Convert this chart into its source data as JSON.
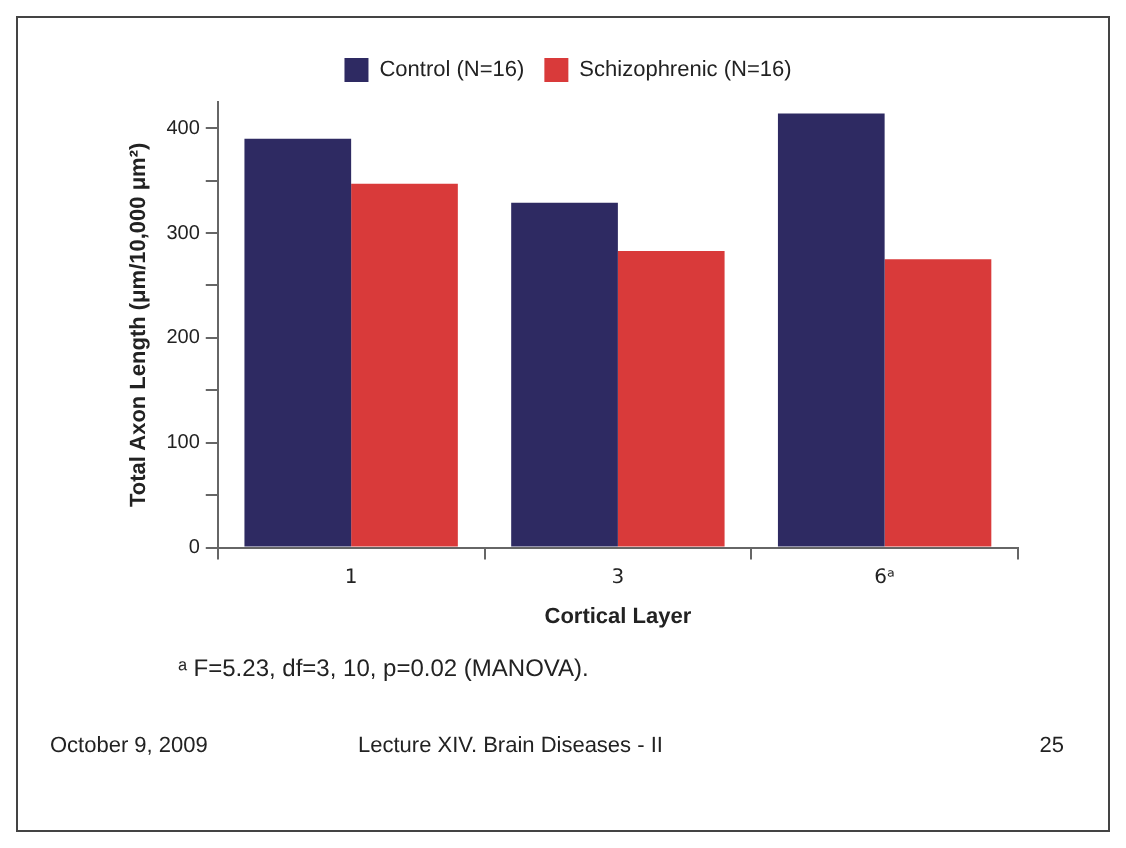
{
  "chart_data": {
    "type": "bar",
    "xlabel": "Cortical Layer",
    "ylabel": "Total Axon Length (μm/10,000 μm²)",
    "categories": [
      "1",
      "3",
      "6ᵃ"
    ],
    "series": [
      {
        "name": "Control (N=16)",
        "color": "#2e2a62",
        "values": [
          390,
          329,
          414
        ]
      },
      {
        "name": "Schizophrenic (N=16)",
        "color": "#d93a3a",
        "values": [
          347,
          283,
          275
        ]
      }
    ],
    "ylim": [
      0,
      425
    ],
    "yticks": [
      0,
      {
        "value": 50,
        "label": null
      },
      100,
      {
        "value": 150,
        "label": null
      },
      200,
      {
        "value": 250,
        "label": null
      },
      300,
      {
        "value": 350,
        "label": null
      },
      400
    ],
    "grid": false,
    "legend": "top",
    "annotations": [
      "ᵃ F=5.23, df=3, 10, p=0.02 (MANOVA).",
      "October 9, 2009",
      "Lecture XIV. Brain Diseases - II",
      "25"
    ]
  }
}
